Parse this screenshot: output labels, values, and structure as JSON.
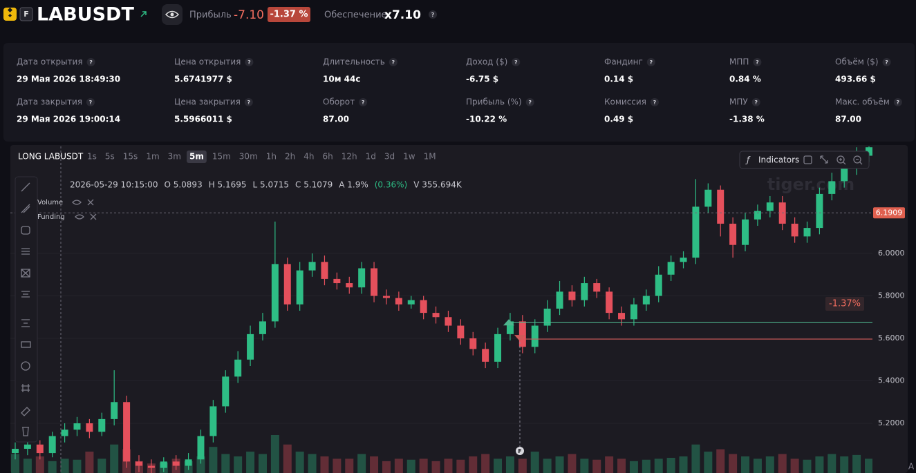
{
  "help_icon": "?",
  "header": {
    "market_badge": "F",
    "symbol": "LABUSDT",
    "profit_label": "Прибыль",
    "profit_value": "-7.10",
    "profit_pct": "-1.37 %",
    "collateral_label": "Обеспечение",
    "collateral_value": "x7.10"
  },
  "stats": [
    [
      {
        "label": "Дата открытия",
        "value": "29 Мая 2026 18:49:30"
      },
      {
        "label": "Цена открытия",
        "value": "5.6741977 $"
      },
      {
        "label": "Длительность",
        "value": "10м 44с"
      },
      {
        "label": "Доход ($)",
        "value": "-6.75 $"
      },
      {
        "label": "Фандинг",
        "value": "0.14 $"
      },
      {
        "label": "МПП",
        "value": "0.84 %"
      },
      {
        "label": "Объём ($)",
        "value": "493.66 $"
      }
    ],
    [
      {
        "label": "Дата закрытия",
        "value": "29 Мая 2026 19:00:14"
      },
      {
        "label": "Цена закрытия",
        "value": "5.5966011 $"
      },
      {
        "label": "Оборот",
        "value": "87.00"
      },
      {
        "label": "Прибыль (%)",
        "value": "-10.22 %"
      },
      {
        "label": "Комиссия",
        "value": "0.49 $"
      },
      {
        "label": "МПУ",
        "value": "-1.38 %"
      },
      {
        "label": "Макс. объём",
        "value": "87.00"
      }
    ]
  ],
  "chart_toolbar": {
    "title": "LONG LABUSDT",
    "timeframes": [
      "1s",
      "5s",
      "15s",
      "1m",
      "3m",
      "5m",
      "15m",
      "30m",
      "1h",
      "2h",
      "4h",
      "6h",
      "12h",
      "1d",
      "3d",
      "1w",
      "1M"
    ],
    "active": 5,
    "indicators": "Indicators"
  },
  "ohlc_info": [
    "2026-05-29 10:15:00",
    "O 5.0893",
    "H 5.1695",
    "L 5.0715",
    "C 5.1079",
    "A 1.9%",
    "(0.36%)",
    "V 355.694K"
  ],
  "legend": [
    "Volume",
    "Funding"
  ],
  "watermark": "tiger.com",
  "auto_button": "A",
  "chart_data": {
    "type": "candlestick",
    "open": [
      5.06,
      5.08,
      5.1,
      5.06,
      5.14,
      5.17,
      5.2,
      5.16,
      5.22,
      5.3,
      5.02,
      5.0,
      4.99,
      5.02,
      5.0,
      5.03,
      5.14,
      5.28,
      5.42,
      5.5,
      5.62,
      5.68,
      5.95,
      5.76,
      5.92,
      5.96,
      5.88,
      5.86,
      5.84,
      5.93,
      5.8,
      5.79,
      5.76,
      5.78,
      5.72,
      5.7,
      5.66,
      5.6,
      5.55,
      5.49,
      5.62,
      5.68,
      5.56,
      5.66,
      5.74,
      5.82,
      5.78,
      5.86,
      5.82,
      5.72,
      5.69,
      5.76,
      5.8,
      5.9,
      5.96,
      5.98,
      6.22,
      6.3,
      6.14,
      6.04,
      6.16,
      6.2,
      6.24,
      6.14,
      6.08,
      6.12,
      6.28,
      6.34,
      6.4,
      6.46
    ],
    "high": [
      5.11,
      5.13,
      5.12,
      5.16,
      5.2,
      5.23,
      5.22,
      5.25,
      5.45,
      5.33,
      5.05,
      5.03,
      5.04,
      5.05,
      5.06,
      5.17,
      5.31,
      5.45,
      5.54,
      5.66,
      5.72,
      6.15,
      5.98,
      5.96,
      6.0,
      5.99,
      5.91,
      5.89,
      5.96,
      5.96,
      5.83,
      5.82,
      5.8,
      5.8,
      5.75,
      5.73,
      5.69,
      5.63,
      5.58,
      5.65,
      5.72,
      5.71,
      5.69,
      5.78,
      5.87,
      5.85,
      5.89,
      5.88,
      5.84,
      5.75,
      5.79,
      5.83,
      5.94,
      5.99,
      6.01,
      6.35,
      6.33,
      6.32,
      6.17,
      6.19,
      6.23,
      6.27,
      6.27,
      6.17,
      6.15,
      6.31,
      6.38,
      6.44,
      6.5,
      6.54
    ],
    "low": [
      5.03,
      5.05,
      5.03,
      5.04,
      5.11,
      5.14,
      5.13,
      5.14,
      5.19,
      4.99,
      4.97,
      4.96,
      4.97,
      4.98,
      4.98,
      5.01,
      5.11,
      5.25,
      5.39,
      5.47,
      5.59,
      5.65,
      5.73,
      5.73,
      5.89,
      5.85,
      5.83,
      5.81,
      5.81,
      5.77,
      5.76,
      5.73,
      5.74,
      5.69,
      5.67,
      5.63,
      5.57,
      5.52,
      5.46,
      5.46,
      5.59,
      5.53,
      5.53,
      5.63,
      5.71,
      5.75,
      5.75,
      5.79,
      5.69,
      5.66,
      5.66,
      5.73,
      5.77,
      5.87,
      5.93,
      5.95,
      6.19,
      6.08,
      5.98,
      6.01,
      6.13,
      6.17,
      6.11,
      6.05,
      6.05,
      6.09,
      6.25,
      6.31,
      6.37,
      6.43
    ],
    "close": [
      5.08,
      5.1,
      5.06,
      5.14,
      5.17,
      5.2,
      5.16,
      5.22,
      5.3,
      5.02,
      5.0,
      4.99,
      5.02,
      5.0,
      5.03,
      5.14,
      5.28,
      5.42,
      5.5,
      5.62,
      5.68,
      5.95,
      5.76,
      5.92,
      5.96,
      5.88,
      5.86,
      5.84,
      5.93,
      5.8,
      5.79,
      5.76,
      5.78,
      5.72,
      5.7,
      5.66,
      5.6,
      5.55,
      5.49,
      5.62,
      5.68,
      5.56,
      5.66,
      5.74,
      5.82,
      5.78,
      5.86,
      5.82,
      5.72,
      5.69,
      5.76,
      5.8,
      5.9,
      5.96,
      5.98,
      6.22,
      6.3,
      6.14,
      6.04,
      6.16,
      6.2,
      6.24,
      6.14,
      6.08,
      6.12,
      6.28,
      6.34,
      6.4,
      6.46,
      6.5
    ],
    "volume": [
      40,
      30,
      35,
      25,
      30,
      28,
      45,
      30,
      60,
      50,
      25,
      20,
      22,
      30,
      25,
      35,
      55,
      40,
      35,
      45,
      40,
      80,
      60,
      45,
      40,
      35,
      30,
      30,
      40,
      35,
      25,
      30,
      28,
      30,
      25,
      30,
      28,
      35,
      40,
      30,
      35,
      30,
      45,
      30,
      35,
      40,
      30,
      28,
      35,
      30,
      25,
      28,
      30,
      32,
      35,
      60,
      45,
      50,
      40,
      35,
      30,
      35,
      40,
      30,
      28,
      35,
      40,
      35,
      38,
      30
    ],
    "up_color": "#2ebd85",
    "down_color": "#e5505c",
    "ylim": [
      4.966,
      6.504
    ],
    "yticks": [
      {
        "value": 5.2,
        "label": "5.2000"
      },
      {
        "value": 5.4,
        "label": "5.4000"
      },
      {
        "value": 5.6,
        "label": "5.6000"
      },
      {
        "value": 5.8,
        "label": "5.8000"
      },
      {
        "value": 6.0,
        "label": "6.0000"
      }
    ],
    "grid": true,
    "crosshair_price": 6.1909,
    "entry_price": 5.6742,
    "exit_price": 5.5966,
    "pnl_label": "-1.37%",
    "funding_marker": "F"
  }
}
